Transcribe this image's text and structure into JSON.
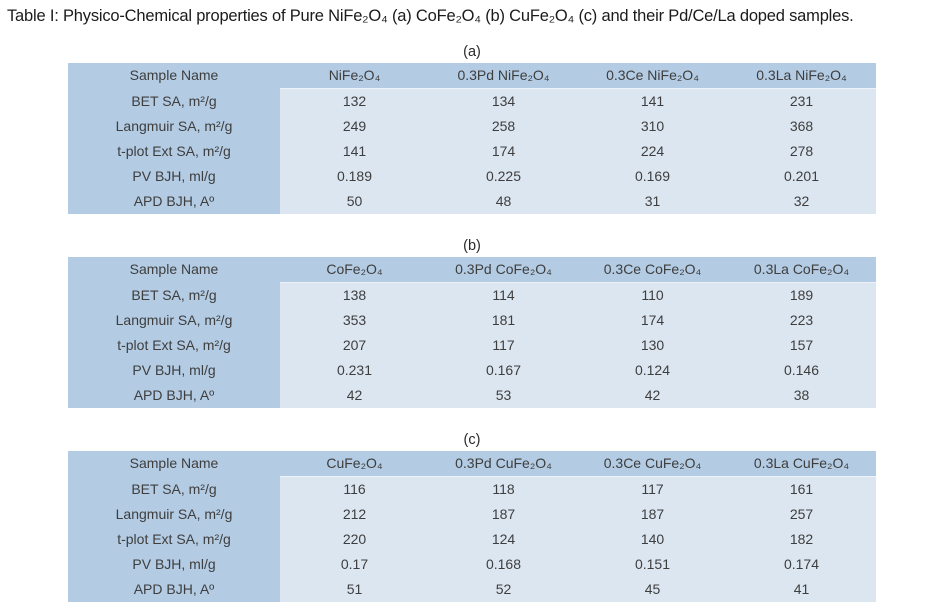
{
  "title": "Table I:  Physico-Chemical properties of Pure NiFe₂O₄ (a) CoFe₂O₄ (b) CuFe₂O₄ (c) and their Pd/Ce/La doped samples.",
  "colors": {
    "header_bg": "#b3cbe3",
    "body_cell_bg": "#dce6f1",
    "cell_text": "#3e3e3e",
    "title_text": "#1b1b1b",
    "page_bg": "#ffffff"
  },
  "tables": [
    {
      "label": "(a)",
      "headers": [
        "Sample Name",
        "NiFe₂O₄",
        "0.3Pd NiFe₂O₄",
        "0.3Ce NiFe₂O₄",
        "0.3La NiFe₂O₄"
      ],
      "rows": [
        {
          "label": "BET SA, m²/g",
          "values": [
            "132",
            "134",
            "141",
            "231"
          ]
        },
        {
          "label": "Langmuir SA, m²/g",
          "values": [
            "249",
            "258",
            "310",
            "368"
          ]
        },
        {
          "label": "t-plot Ext SA, m²/g",
          "values": [
            "141",
            "174",
            "224",
            "278"
          ]
        },
        {
          "label": "PV BJH, ml/g",
          "values": [
            "0.189",
            "0.225",
            "0.169",
            "0.201"
          ]
        },
        {
          "label": "APD BJH, Aº",
          "values": [
            "50",
            "48",
            "31",
            "32"
          ]
        }
      ]
    },
    {
      "label": "(b)",
      "headers": [
        "Sample Name",
        "CoFe₂O₄",
        "0.3Pd CoFe₂O₄",
        "0.3Ce CoFe₂O₄",
        "0.3La CoFe₂O₄"
      ],
      "rows": [
        {
          "label": "BET SA, m²/g",
          "values": [
            "138",
            "114",
            "110",
            "189"
          ]
        },
        {
          "label": "Langmuir SA, m²/g",
          "values": [
            "353",
            "181",
            "174",
            "223"
          ]
        },
        {
          "label": "t-plot Ext SA, m²/g",
          "values": [
            "207",
            "117",
            "130",
            "157"
          ]
        },
        {
          "label": "PV BJH, ml/g",
          "values": [
            "0.231",
            "0.167",
            "0.124",
            "0.146"
          ]
        },
        {
          "label": "APD BJH, Aº",
          "values": [
            "42",
            "53",
            "42",
            "38"
          ]
        }
      ]
    },
    {
      "label": "(c)",
      "headers": [
        "Sample Name",
        "CuFe₂O₄",
        "0.3Pd CuFe₂O₄",
        "0.3Ce CuFe₂O₄",
        "0.3La CuFe₂O₄"
      ],
      "rows": [
        {
          "label": "BET SA, m²/g",
          "values": [
            "116",
            "118",
            "117",
            "161"
          ]
        },
        {
          "label": "Langmuir SA, m²/g",
          "values": [
            "212",
            "187",
            "187",
            "257"
          ]
        },
        {
          "label": "t-plot Ext SA, m²/g",
          "values": [
            "220",
            "124",
            "140",
            "182"
          ]
        },
        {
          "label": "PV BJH, ml/g",
          "values": [
            "0.17",
            "0.168",
            "0.151",
            "0.174"
          ]
        },
        {
          "label": "APD BJH, Aº",
          "values": [
            "51",
            "52",
            "45",
            "41"
          ]
        }
      ]
    }
  ]
}
